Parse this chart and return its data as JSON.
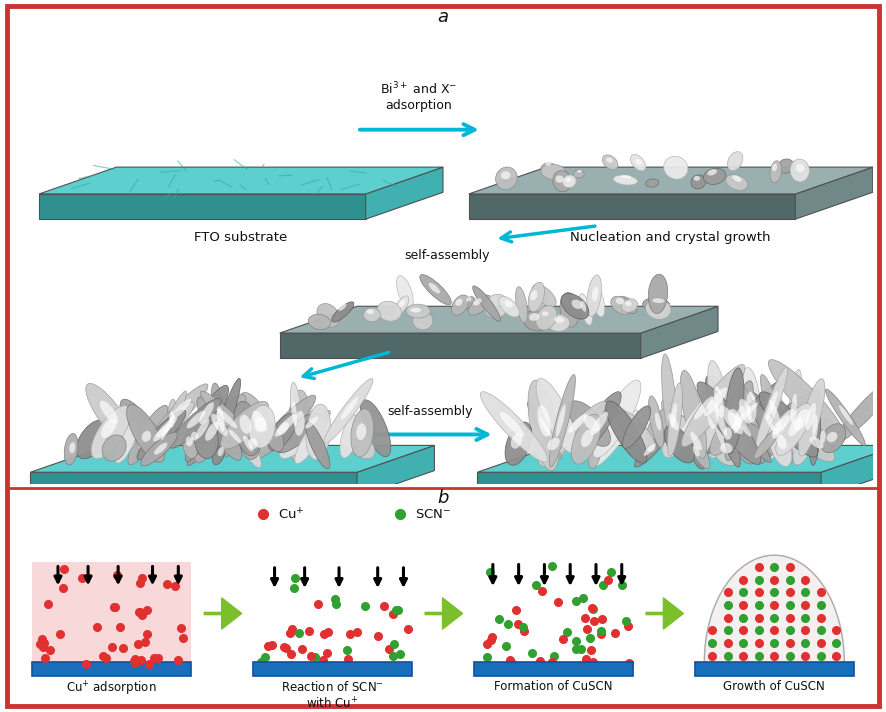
{
  "figure_bg": "#ffffff",
  "border_color": "#cc3333",
  "label_a": "a",
  "label_b": "b",
  "fto_color": "#5ecfcf",
  "fto_side_color": "#40b0b0",
  "fto_bottom_color": "#309090",
  "substrate_top_gray": "#9aafaf",
  "substrate_side_gray": "#708888",
  "substrate_bottom_gray": "#506868",
  "nanosheet_light": "#d8e0e0",
  "nanosheet_mid": "#b0b8b8",
  "nanosheet_dark": "#808888",
  "nanosheet_white": "#f0f4f4",
  "blue_substrate": "#1a6fba",
  "blue_sub_dark": "#1050a0",
  "cu_dot_color": "#e03030",
  "scn_dot_color": "#30a030",
  "arrow_green": "#7bbf2a",
  "arrow_cyan": "#00b8d4",
  "text_color": "#111111",
  "bi3_label": "Bi$^{3+}$ and X$^{-}$\nadsorption",
  "nucleation_label": "Nucleation and crystal growth",
  "selfassembly1_label": "self-assembly",
  "selfassembly2_label": "self-assembly",
  "fto_label": "FTO substrate",
  "cu_adsorption_label": "Cu$^{+}$ adsorption",
  "reaction_label": "Reaction of SCN$^{-}$\nwith Cu$^{+}$",
  "formation_label": "Formation of CuSCN",
  "growth_label": "Growth of CuSCN",
  "legend_cu": "Cu$^{+}$",
  "legend_scn": "SCN$^{-}$"
}
